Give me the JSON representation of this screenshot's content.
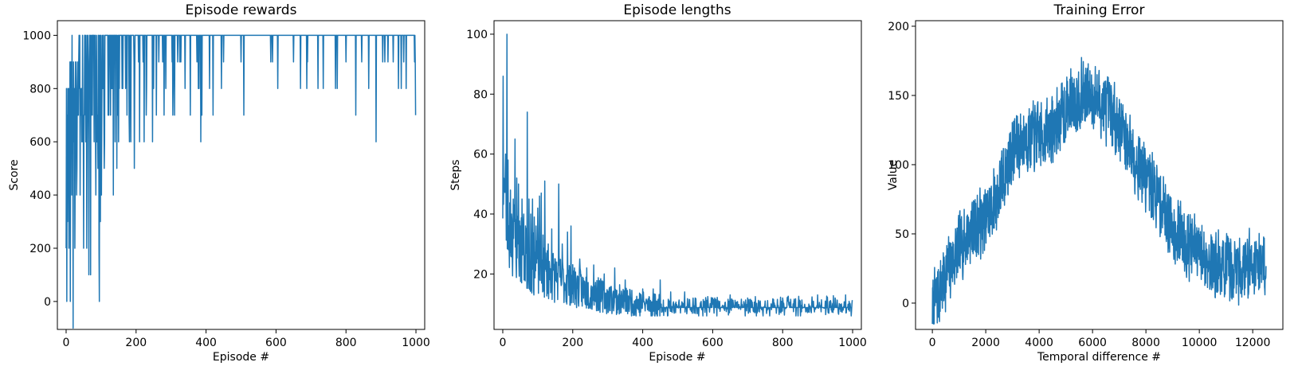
{
  "chart_data": [
    {
      "type": "line",
      "title": "Episode rewards",
      "xlabel": "Episode #",
      "ylabel": "Score",
      "xlim": [
        -25,
        1025
      ],
      "ylim": [
        -105,
        1055
      ],
      "xticks": [
        0,
        200,
        400,
        600,
        800,
        1000
      ],
      "yticks": [
        0,
        200,
        400,
        600,
        800,
        1000
      ],
      "grid": false,
      "color": "#1f77b4",
      "n_points": 1000,
      "keypoints_x": [
        0,
        10,
        20,
        40,
        60,
        80,
        100,
        130,
        170,
        220,
        280,
        350,
        420,
        500,
        600,
        700,
        800,
        900,
        960,
        995,
        1000
      ],
      "keypoints_y": [
        500,
        700,
        800,
        850,
        880,
        900,
        920,
        930,
        945,
        960,
        970,
        978,
        984,
        990,
        993,
        995,
        995,
        993,
        992,
        993,
        800
      ],
      "dips": [
        {
          "x": 0,
          "y": 200
        },
        {
          "x": 2,
          "y": 0
        },
        {
          "x": 5,
          "y": 800
        },
        {
          "x": 8,
          "y": 200
        },
        {
          "x": 10,
          "y": 300
        },
        {
          "x": 12,
          "y": 0
        },
        {
          "x": 15,
          "y": 900
        },
        {
          "x": 18,
          "y": 400
        },
        {
          "x": 20,
          "y": -100
        },
        {
          "x": 25,
          "y": 200
        },
        {
          "x": 30,
          "y": 400
        },
        {
          "x": 35,
          "y": 700
        },
        {
          "x": 40,
          "y": 400
        },
        {
          "x": 45,
          "y": 600
        },
        {
          "x": 50,
          "y": 200
        },
        {
          "x": 55,
          "y": 800
        },
        {
          "x": 60,
          "y": 600
        },
        {
          "x": 65,
          "y": 100
        },
        {
          "x": 70,
          "y": 100
        },
        {
          "x": 75,
          "y": 700
        },
        {
          "x": 80,
          "y": 600
        },
        {
          "x": 85,
          "y": 400
        },
        {
          "x": 90,
          "y": 700
        },
        {
          "x": 95,
          "y": 0
        },
        {
          "x": 100,
          "y": 600
        },
        {
          "x": 105,
          "y": 800
        },
        {
          "x": 110,
          "y": 600
        },
        {
          "x": 120,
          "y": 700
        },
        {
          "x": 130,
          "y": 800
        },
        {
          "x": 135,
          "y": 400
        },
        {
          "x": 140,
          "y": 600
        },
        {
          "x": 145,
          "y": 500
        },
        {
          "x": 150,
          "y": 600
        },
        {
          "x": 160,
          "y": 800
        },
        {
          "x": 170,
          "y": 800
        },
        {
          "x": 180,
          "y": 700
        },
        {
          "x": 195,
          "y": 500
        },
        {
          "x": 210,
          "y": 600
        },
        {
          "x": 230,
          "y": 800
        },
        {
          "x": 250,
          "y": 800
        },
        {
          "x": 265,
          "y": 900
        },
        {
          "x": 285,
          "y": 800
        },
        {
          "x": 310,
          "y": 700
        },
        {
          "x": 340,
          "y": 800
        },
        {
          "x": 355,
          "y": 700
        },
        {
          "x": 380,
          "y": 800
        },
        {
          "x": 410,
          "y": 800
        },
        {
          "x": 450,
          "y": 900
        },
        {
          "x": 500,
          "y": 900
        },
        {
          "x": 590,
          "y": 900
        },
        {
          "x": 605,
          "y": 800
        },
        {
          "x": 650,
          "y": 900
        },
        {
          "x": 670,
          "y": 800
        },
        {
          "x": 690,
          "y": 900
        },
        {
          "x": 720,
          "y": 800
        },
        {
          "x": 735,
          "y": 800
        },
        {
          "x": 775,
          "y": 800
        },
        {
          "x": 800,
          "y": 900
        },
        {
          "x": 845,
          "y": 900
        },
        {
          "x": 865,
          "y": 800
        },
        {
          "x": 905,
          "y": 900
        },
        {
          "x": 920,
          "y": 900
        },
        {
          "x": 935,
          "y": 900
        },
        {
          "x": 950,
          "y": 800
        },
        {
          "x": 958,
          "y": 800
        },
        {
          "x": 965,
          "y": 900
        },
        {
          "x": 972,
          "y": 800
        }
      ],
      "noise": 150,
      "ymax": 1000
    },
    {
      "type": "line",
      "title": "Episode lengths",
      "xlabel": "Episode #",
      "ylabel": "Steps",
      "xlim": [
        -25,
        1025
      ],
      "ylim": [
        1.5,
        104.5
      ],
      "xticks": [
        0,
        200,
        400,
        600,
        800,
        1000
      ],
      "yticks": [
        20,
        40,
        60,
        80,
        100
      ],
      "grid": false,
      "color": "#1f77b4",
      "n_points": 1000,
      "keypoints_x": [
        0,
        5,
        10,
        20,
        40,
        70,
        100,
        150,
        200,
        250,
        300,
        350,
        400,
        450,
        500,
        600,
        700,
        800,
        900,
        1000
      ],
      "keypoints_y": [
        50,
        48,
        40,
        35,
        30,
        25,
        22,
        19,
        16,
        14,
        12,
        11,
        10,
        9.5,
        9,
        8.8,
        8.8,
        8.8,
        8.8,
        8.8
      ],
      "spikes": [
        {
          "x": 1,
          "y": 86
        },
        {
          "x": 3,
          "y": 52
        },
        {
          "x": 5,
          "y": 50
        },
        {
          "x": 8,
          "y": 60
        },
        {
          "x": 12,
          "y": 100
        },
        {
          "x": 15,
          "y": 58
        },
        {
          "x": 18,
          "y": 30
        },
        {
          "x": 22,
          "y": 48
        },
        {
          "x": 25,
          "y": 40
        },
        {
          "x": 30,
          "y": 45
        },
        {
          "x": 35,
          "y": 65
        },
        {
          "x": 40,
          "y": 52
        },
        {
          "x": 45,
          "y": 50
        },
        {
          "x": 50,
          "y": 36
        },
        {
          "x": 55,
          "y": 45
        },
        {
          "x": 60,
          "y": 40
        },
        {
          "x": 65,
          "y": 36
        },
        {
          "x": 70,
          "y": 74
        },
        {
          "x": 75,
          "y": 45
        },
        {
          "x": 80,
          "y": 40
        },
        {
          "x": 85,
          "y": 45
        },
        {
          "x": 90,
          "y": 39
        },
        {
          "x": 95,
          "y": 36
        },
        {
          "x": 100,
          "y": 42
        },
        {
          "x": 105,
          "y": 46
        },
        {
          "x": 110,
          "y": 47
        },
        {
          "x": 115,
          "y": 33
        },
        {
          "x": 120,
          "y": 51
        },
        {
          "x": 130,
          "y": 30
        },
        {
          "x": 140,
          "y": 35
        },
        {
          "x": 150,
          "y": 25
        },
        {
          "x": 160,
          "y": 50
        },
        {
          "x": 170,
          "y": 30
        },
        {
          "x": 185,
          "y": 34
        },
        {
          "x": 195,
          "y": 36
        },
        {
          "x": 205,
          "y": 22
        },
        {
          "x": 220,
          "y": 25
        },
        {
          "x": 240,
          "y": 22
        },
        {
          "x": 260,
          "y": 23
        },
        {
          "x": 290,
          "y": 20
        },
        {
          "x": 320,
          "y": 22
        },
        {
          "x": 350,
          "y": 18
        },
        {
          "x": 400,
          "y": 15
        },
        {
          "x": 430,
          "y": 15
        },
        {
          "x": 450,
          "y": 18
        },
        {
          "x": 480,
          "y": 14
        },
        {
          "x": 520,
          "y": 14
        },
        {
          "x": 550,
          "y": 12
        },
        {
          "x": 600,
          "y": 12
        },
        {
          "x": 650,
          "y": 13
        },
        {
          "x": 700,
          "y": 12
        },
        {
          "x": 750,
          "y": 11
        },
        {
          "x": 800,
          "y": 12
        },
        {
          "x": 850,
          "y": 11
        },
        {
          "x": 900,
          "y": 13
        },
        {
          "x": 950,
          "y": 12
        },
        {
          "x": 980,
          "y": 13
        }
      ],
      "noise_min": 6,
      "noise": 6
    },
    {
      "type": "line",
      "title": "Training Error",
      "xlabel": "Temporal difference #",
      "ylabel": "Value",
      "xlim": [
        -630,
        13130
      ],
      "ylim": [
        -19,
        204
      ],
      "xticks": [
        0,
        2000,
        4000,
        6000,
        8000,
        10000,
        12000
      ],
      "yticks": [
        0,
        50,
        100,
        150,
        200
      ],
      "grid": false,
      "color": "#1f77b4",
      "n_points": 1500,
      "keypoints_x": [
        0,
        500,
        1000,
        1500,
        2000,
        2500,
        3000,
        3500,
        4000,
        4500,
        5000,
        5500,
        6000,
        6500,
        7000,
        7500,
        8000,
        8500,
        9000,
        9500,
        10000,
        10500,
        11000,
        11500,
        12000,
        12500
      ],
      "keypoints_y": [
        -5,
        20,
        40,
        55,
        60,
        80,
        110,
        120,
        120,
        125,
        140,
        150,
        150,
        140,
        130,
        110,
        90,
        75,
        55,
        45,
        35,
        30,
        25,
        25,
        30,
        30
      ],
      "noise": 28,
      "ymin": -15,
      "ymax": 194
    }
  ]
}
